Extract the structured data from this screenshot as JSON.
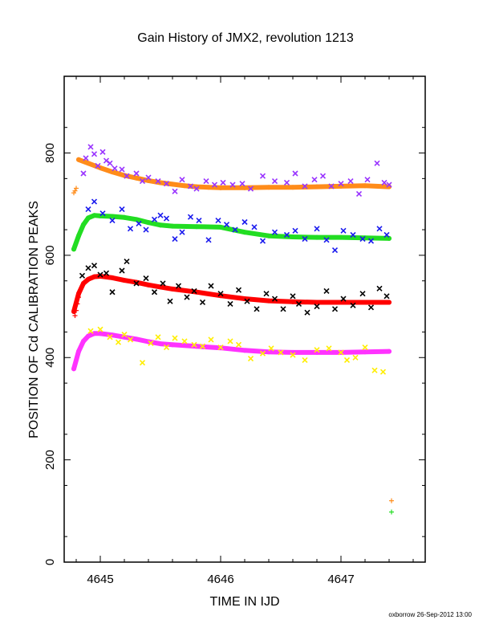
{
  "chart_data": {
    "type": "scatter",
    "title": "Gain History of JMX2, revolution 1213",
    "xlabel": "TIME IN IJD",
    "ylabel": "POSITION OF Cd CALIBRATION PEAKS",
    "xlim": [
      4644.7,
      4647.7
    ],
    "ylim": [
      0,
      950
    ],
    "xticks": [
      4645,
      4646,
      4647
    ],
    "yticks": [
      0,
      200,
      400,
      600,
      800
    ],
    "grid": false,
    "footer": "oxborrow 26-Sep-2012 13:00",
    "colors": {
      "orange": "#ff8c1a",
      "purple": "#9933ff",
      "green": "#22dd22",
      "blue": "#1a1aee",
      "red": "#ff0000",
      "black": "#000000",
      "magenta": "#ff33ff",
      "yellow": "#ffee00"
    },
    "series": [
      {
        "color": "#ff8c1a",
        "marker": "fit-line",
        "x": [
          4644.82,
          4644.9,
          4645.0,
          4645.1,
          4645.2,
          4645.3,
          4645.4,
          4645.5,
          4645.6,
          4645.7,
          4645.8,
          4645.9,
          4646.0,
          4646.2,
          4646.4,
          4646.6,
          4646.8,
          4647.0,
          4647.2,
          4647.4
        ],
        "y": [
          787,
          780,
          771,
          763,
          756,
          751,
          746,
          742,
          739,
          736,
          734,
          733,
          732,
          732,
          733,
          733,
          734,
          735,
          736,
          734
        ]
      },
      {
        "color": "#ff8c1a",
        "marker": "plus",
        "x": [
          4644.78,
          4644.79,
          4644.8,
          4647.42
        ],
        "y": [
          722,
          726,
          731,
          120
        ]
      },
      {
        "color": "#9933ff",
        "marker": "x",
        "x": [
          4644.86,
          4644.88,
          4644.92,
          4644.95,
          4644.98,
          4645.02,
          4645.05,
          4645.08,
          4645.12,
          4645.18,
          4645.22,
          4645.3,
          4645.35,
          4645.4,
          4645.48,
          4645.55,
          4645.62,
          4645.68,
          4645.75,
          4645.8,
          4645.88,
          4645.95,
          4646.02,
          4646.1,
          4646.18,
          4646.25,
          4646.35,
          4646.45,
          4646.55,
          4646.62,
          4646.7,
          4646.78,
          4646.85,
          4646.92,
          4647.0,
          4647.08,
          4647.15,
          4647.22,
          4647.3,
          4647.36,
          4647.4
        ],
        "y": [
          760,
          790,
          812,
          798,
          775,
          802,
          785,
          780,
          770,
          768,
          755,
          760,
          745,
          752,
          745,
          740,
          725,
          748,
          735,
          730,
          745,
          738,
          742,
          738,
          740,
          730,
          755,
          745,
          742,
          760,
          735,
          748,
          755,
          735,
          740,
          745,
          720,
          748,
          780,
          742,
          738
        ]
      },
      {
        "color": "#22dd22",
        "marker": "fit-line",
        "x": [
          4644.78,
          4644.82,
          4644.86,
          4644.9,
          4644.95,
          4645.0,
          4645.1,
          4645.2,
          4645.3,
          4645.4,
          4645.5,
          4645.6,
          4645.8,
          4646.0,
          4646.2,
          4646.4,
          4646.6,
          4646.8,
          4647.0,
          4647.2,
          4647.4
        ],
        "y": [
          612,
          638,
          660,
          673,
          678,
          677,
          676,
          674,
          670,
          664,
          659,
          657,
          656,
          655,
          645,
          638,
          636,
          635,
          635,
          634,
          633
        ]
      },
      {
        "color": "#22dd22",
        "marker": "plus",
        "x": [
          4647.42
        ],
        "y": [
          98
        ]
      },
      {
        "color": "#1a1aee",
        "marker": "x",
        "x": [
          4644.9,
          4644.95,
          4645.02,
          4645.1,
          4645.18,
          4645.25,
          4645.32,
          4645.38,
          4645.45,
          4645.5,
          4645.55,
          4645.62,
          4645.68,
          4645.75,
          4645.82,
          4645.9,
          4645.98,
          4646.05,
          4646.12,
          4646.2,
          4646.28,
          4646.35,
          4646.45,
          4646.55,
          4646.62,
          4646.7,
          4646.8,
          4646.88,
          4646.95,
          4647.02,
          4647.1,
          4647.18,
          4647.25,
          4647.32,
          4647.38
        ],
        "y": [
          690,
          705,
          682,
          668,
          690,
          652,
          662,
          650,
          670,
          678,
          672,
          632,
          645,
          675,
          668,
          630,
          668,
          660,
          650,
          665,
          655,
          628,
          645,
          640,
          648,
          632,
          652,
          630,
          610,
          648,
          640,
          632,
          628,
          652,
          640
        ]
      },
      {
        "color": "#ff0000",
        "marker": "fit-line",
        "x": [
          4644.78,
          4644.82,
          4644.86,
          4644.9,
          4644.95,
          4645.0,
          4645.1,
          4645.2,
          4645.3,
          4645.4,
          4645.5,
          4645.6,
          4645.8,
          4646.0,
          4646.2,
          4646.4,
          4646.6,
          4646.8,
          4647.0,
          4647.2,
          4647.4
        ],
        "y": [
          490,
          525,
          545,
          553,
          558,
          559,
          556,
          551,
          547,
          542,
          538,
          534,
          528,
          521,
          515,
          511,
          509,
          508,
          508,
          508,
          508
        ]
      },
      {
        "color": "#000000",
        "marker": "x",
        "x": [
          4644.85,
          4644.9,
          4644.95,
          4645.0,
          4645.05,
          4645.1,
          4645.18,
          4645.22,
          4645.3,
          4645.38,
          4645.45,
          4645.52,
          4645.58,
          4645.65,
          4645.72,
          4645.78,
          4645.85,
          4645.92,
          4646.0,
          4646.08,
          4646.15,
          4646.22,
          4646.3,
          4646.38,
          4646.45,
          4646.52,
          4646.6,
          4646.65,
          4646.72,
          4646.8,
          4646.88,
          4646.95,
          4647.02,
          4647.1,
          4647.18,
          4647.25,
          4647.32,
          4647.38
        ],
        "y": [
          560,
          575,
          580,
          562,
          565,
          528,
          570,
          588,
          545,
          555,
          528,
          545,
          510,
          540,
          518,
          530,
          508,
          540,
          525,
          505,
          532,
          510,
          495,
          525,
          515,
          495,
          520,
          505,
          488,
          500,
          530,
          495,
          515,
          502,
          525,
          498,
          535,
          520
        ]
      },
      {
        "color": "#ff0000",
        "marker": "plus",
        "x": [
          4644.79,
          4644.8,
          4644.81,
          4644.82
        ],
        "y": [
          482,
          492,
          505,
          518
        ]
      },
      {
        "color": "#ff33ff",
        "marker": "fit-line",
        "x": [
          4644.78,
          4644.82,
          4644.86,
          4644.9,
          4644.95,
          4645.0,
          4645.1,
          4645.2,
          4645.3,
          4645.4,
          4645.5,
          4645.6,
          4645.8,
          4646.0,
          4646.2,
          4646.4,
          4646.6,
          4646.8,
          4647.0,
          4647.2,
          4647.4
        ],
        "y": [
          378,
          412,
          432,
          442,
          447,
          447,
          444,
          440,
          436,
          431,
          427,
          425,
          422,
          419,
          414,
          411,
          410,
          410,
          410,
          411,
          412
        ]
      },
      {
        "color": "#ffee00",
        "marker": "x",
        "x": [
          4644.92,
          4645.0,
          4645.08,
          4645.15,
          4645.2,
          4645.25,
          4645.35,
          4645.42,
          4645.48,
          4645.55,
          4645.62,
          4645.7,
          4645.78,
          4645.85,
          4645.92,
          4646.0,
          4646.08,
          4646.15,
          4646.25,
          4646.35,
          4646.42,
          4646.5,
          4646.6,
          4646.7,
          4646.8,
          4646.9,
          4647.0,
          4647.05,
          4647.12,
          4647.2,
          4647.28,
          4647.35
        ],
        "y": [
          452,
          455,
          440,
          430,
          445,
          435,
          390,
          428,
          440,
          420,
          438,
          432,
          425,
          422,
          435,
          420,
          432,
          425,
          398,
          408,
          418,
          410,
          405,
          395,
          415,
          418,
          410,
          395,
          400,
          420,
          375,
          372
        ]
      }
    ]
  }
}
